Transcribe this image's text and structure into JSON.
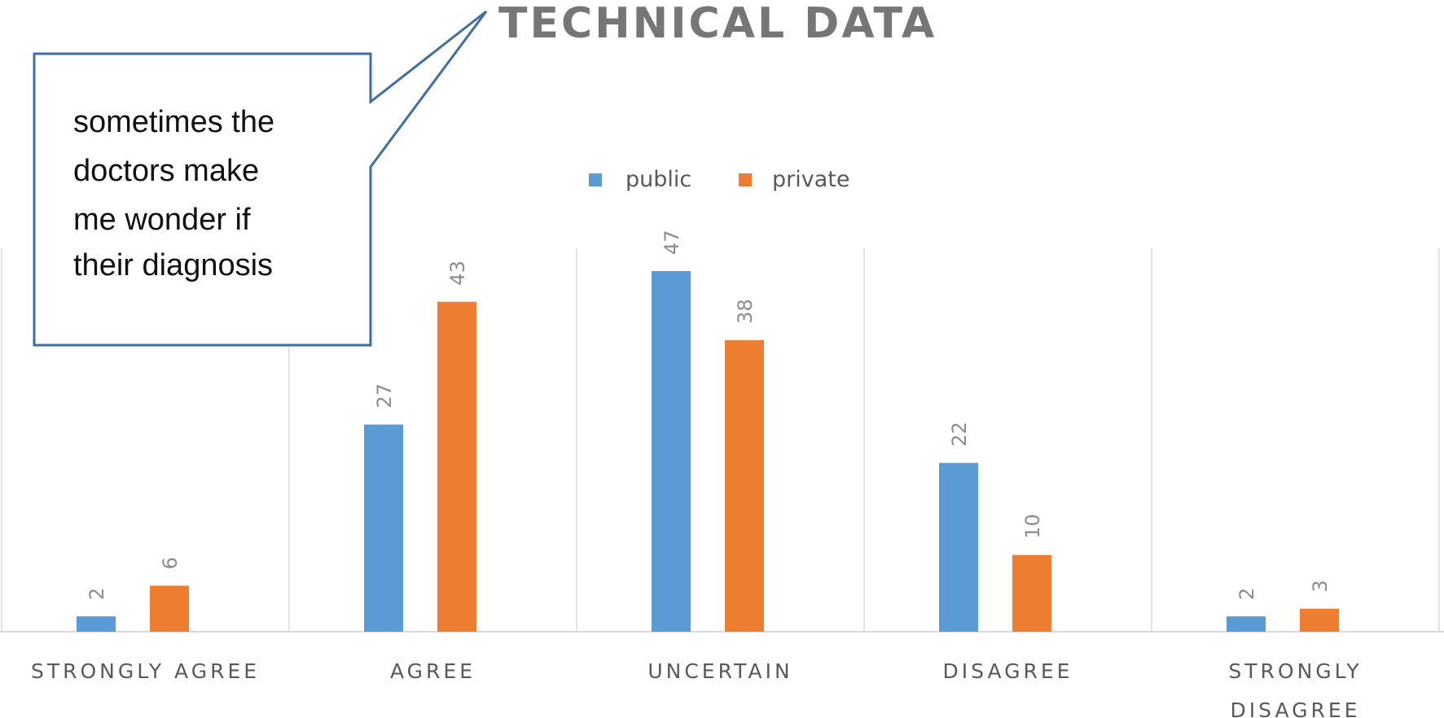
{
  "chart_data": {
    "type": "bar",
    "title": "TECHNICAL DATA",
    "categories": [
      [
        "STRONGLY AGREE"
      ],
      [
        "AGREE"
      ],
      [
        "UNCERTAIN"
      ],
      [
        "DISAGREE"
      ],
      [
        "STRONGLY",
        "DISAGREE"
      ]
    ],
    "series": [
      {
        "name": "public",
        "values": [
          2,
          27,
          47,
          22,
          2
        ],
        "color": "#5b9bd5"
      },
      {
        "name": "private",
        "values": [
          6,
          43,
          38,
          10,
          3
        ],
        "color": "#ed7d31"
      }
    ],
    "ylim": [
      0,
      47
    ],
    "legend_position": "top-center",
    "gridlines": "vertical-category-separators",
    "data_labels": "rotated",
    "callout": {
      "lines": [
        "sometimes the",
        "doctors make",
        "me wonder if",
        "their diagnosis"
      ],
      "border_color": "#3f6ea4",
      "pointer": "up-right toward title"
    }
  }
}
